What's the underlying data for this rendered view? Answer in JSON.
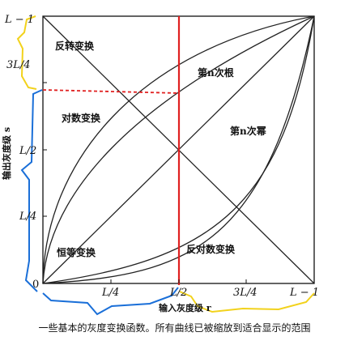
{
  "diagram": {
    "y_axis_label": "输出灰度级 s",
    "x_axis_label": "输入灰度级 r",
    "y_ticks": [
      "L − 1",
      "3L/4",
      "L/2",
      "L/4"
    ],
    "x_ticks": [
      "L/4",
      "L/2",
      "3L/4",
      "L − 1"
    ],
    "origin": "0",
    "curves": {
      "negative": "反转变换",
      "log": "对数变换",
      "nth_root": "第n次根",
      "nth_power": "第n次幂",
      "identity": "恒等变换",
      "inverse_log": "反对数变换"
    },
    "colors": {
      "axis": "#111111",
      "curve": "#222222",
      "red": "#e02020",
      "blue": "#1a6fd8",
      "yellow": "#f2d21c"
    }
  },
  "caption": "一些基本的灰度变换函数。所有曲线已被缩放到适合显示的范围"
}
